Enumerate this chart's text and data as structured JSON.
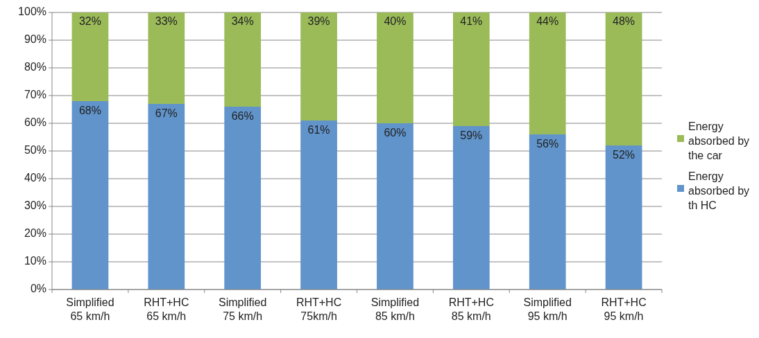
{
  "chart_data": {
    "type": "bar",
    "stacked": true,
    "categories": [
      "Simplified 65 km/h",
      "RHT+HC 65 km/h",
      "Simplified 75 km/h",
      "RHT+HC 75km/h",
      "Simplified 85 km/h",
      "RHT+HC 85 km/h",
      "Simplified 95 km/h",
      "RHT+HC 95 km/h"
    ],
    "series": [
      {
        "name": "Energy absorbed by th HC",
        "color": "#6194cb",
        "values": [
          68,
          67,
          66,
          61,
          60,
          59,
          56,
          52
        ],
        "value_labels": [
          "68%",
          "67%",
          "66%",
          "61%",
          "60%",
          "59%",
          "56%",
          "52%"
        ]
      },
      {
        "name": "Energy absorbed by the car",
        "color": "#9bbb59",
        "values": [
          32,
          33,
          34,
          39,
          40,
          41,
          44,
          48
        ],
        "value_labels": [
          "32%",
          "33%",
          "34%",
          "39%",
          "40%",
          "41%",
          "44%",
          "48%"
        ]
      }
    ],
    "ylim": [
      0,
      100
    ],
    "yticks": [
      {
        "value": 0,
        "label": "0%"
      },
      {
        "value": 10,
        "label": "10%"
      },
      {
        "value": 20,
        "label": "20%"
      },
      {
        "value": 30,
        "label": "30%"
      },
      {
        "value": 40,
        "label": "40%"
      },
      {
        "value": 50,
        "label": "50%"
      },
      {
        "value": 60,
        "label": "60%"
      },
      {
        "value": 70,
        "label": "70%"
      },
      {
        "value": 80,
        "label": "80%"
      },
      {
        "value": 90,
        "label": "90%"
      },
      {
        "value": 100,
        "label": "100%"
      }
    ],
    "grid": "y",
    "legend": "right"
  }
}
